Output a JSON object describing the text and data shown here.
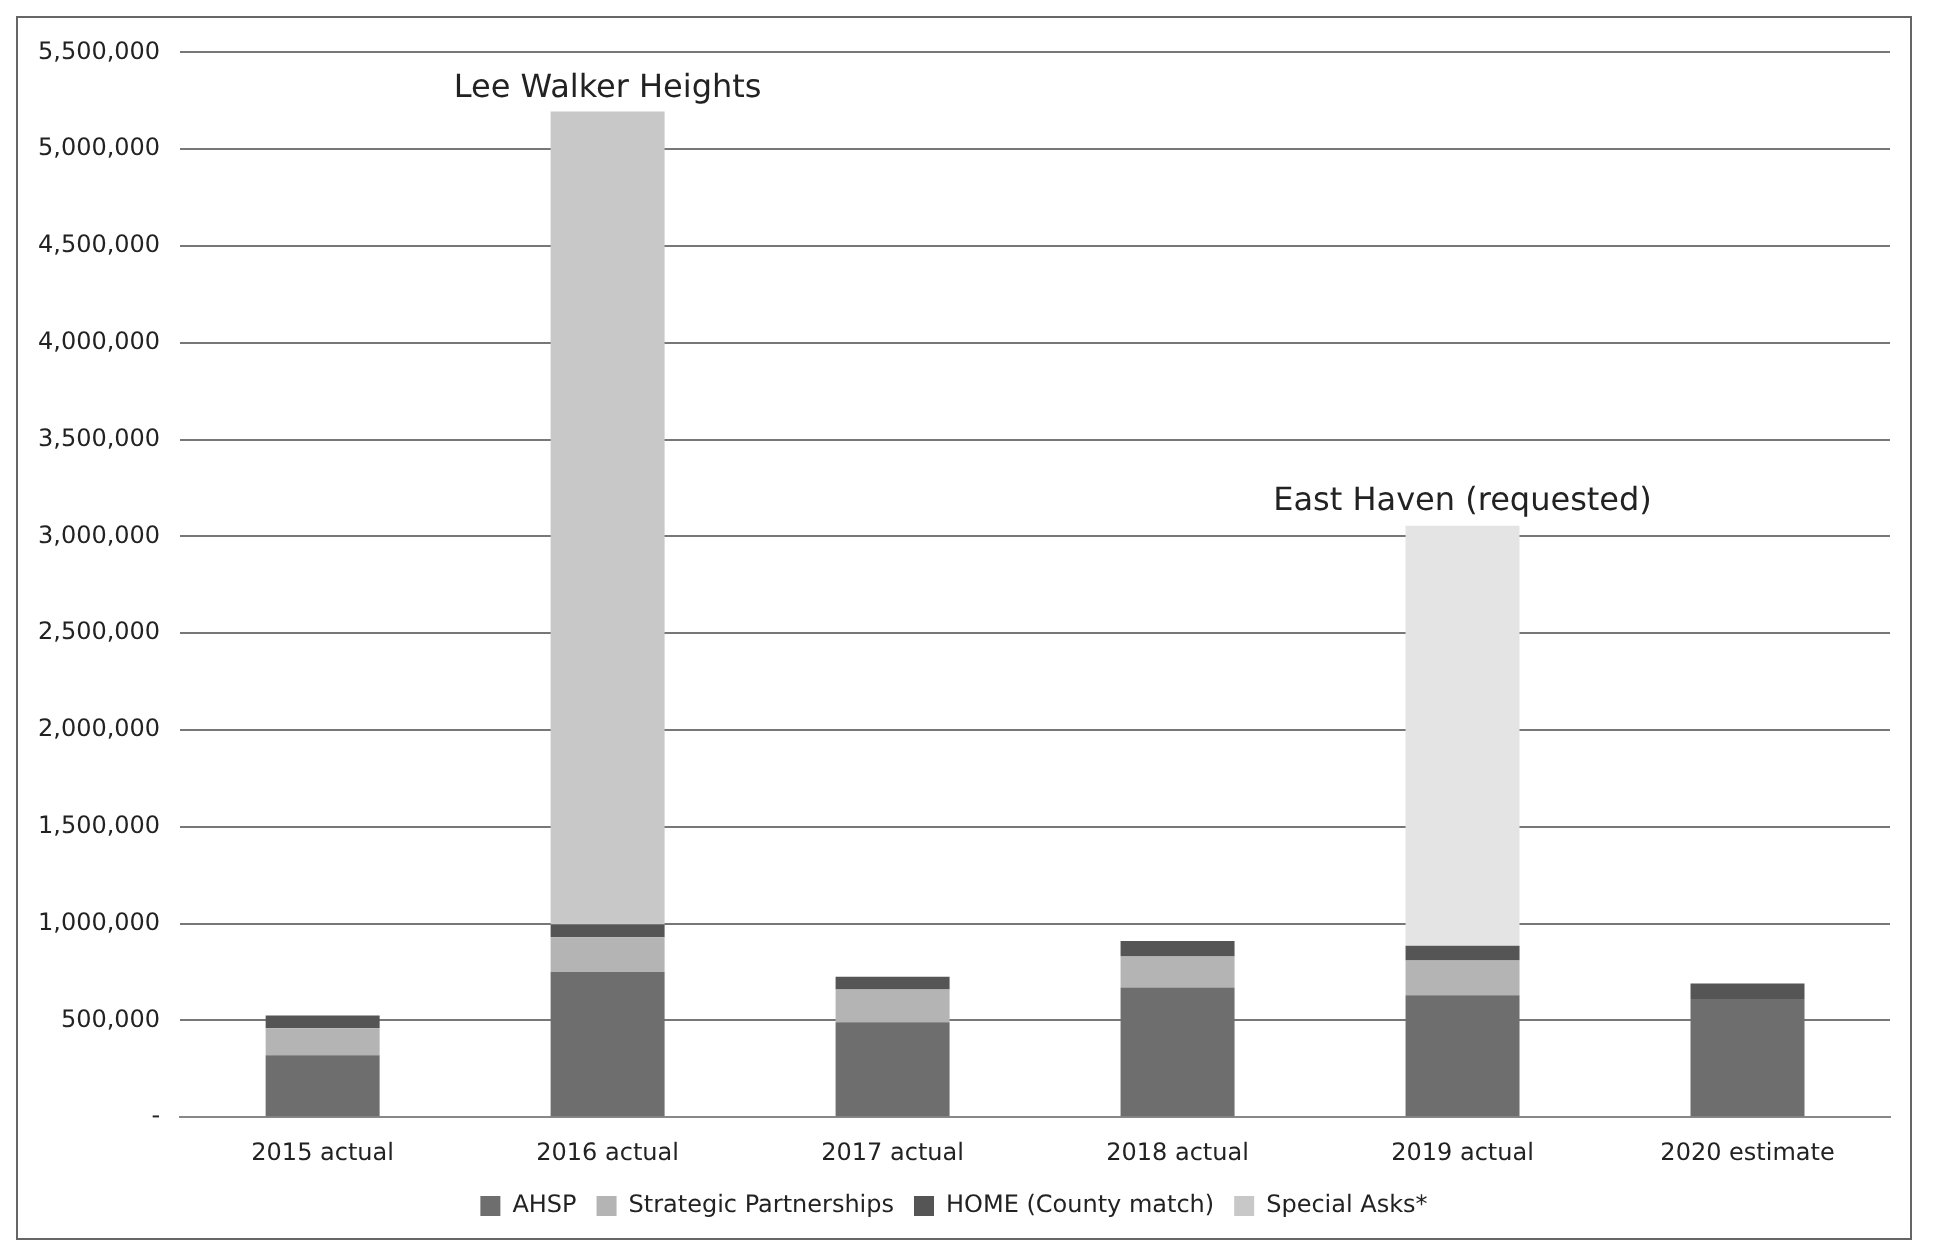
{
  "chart_data": {
    "type": "bar",
    "stacked": true,
    "categories": [
      "2015 actual",
      "2016 actual",
      "2017 actual",
      "2018 actual",
      "2019 actual",
      "2020 estimate"
    ],
    "series": [
      {
        "name": "AHSP",
        "color": "#6e6e6e",
        "values": [
          320000,
          750000,
          490000,
          670000,
          630000,
          610000
        ]
      },
      {
        "name": "Strategic Partnerships",
        "color": "#b4b4b4",
        "values": [
          140000,
          180000,
          170000,
          160000,
          180000,
          0
        ]
      },
      {
        "name": "HOME (County match)",
        "color": "#555555",
        "values": [
          65000,
          65000,
          65000,
          80000,
          75000,
          80000
        ]
      },
      {
        "name": "Special Asks*",
        "color": "#c8c8c8",
        "colors": [
          "#c8c8c8",
          "#c8c8c8",
          "#c8c8c8",
          "#c8c8c8",
          "#e4e4e4",
          "#c8c8c8"
        ],
        "values": [
          null,
          4200000,
          null,
          null,
          2170000,
          null
        ]
      }
    ],
    "ylim": [
      0,
      5500000
    ],
    "yticks": [
      {
        "value": 0,
        "label": "-"
      },
      {
        "value": 500000,
        "label": "500,000"
      },
      {
        "value": 1000000,
        "label": "1,000,000"
      },
      {
        "value": 1500000,
        "label": "1,500,000"
      },
      {
        "value": 2000000,
        "label": "2,000,000"
      },
      {
        "value": 2500000,
        "label": "2,500,000"
      },
      {
        "value": 3000000,
        "label": "3,000,000"
      },
      {
        "value": 3500000,
        "label": "3,500,000"
      },
      {
        "value": 4000000,
        "label": "4,000,000"
      },
      {
        "value": 4500000,
        "label": "4,500,000"
      },
      {
        "value": 5000000,
        "label": "5,000,000"
      },
      {
        "value": 5500000,
        "label": "5,500,000"
      }
    ],
    "grid": "y",
    "legend": "bottom",
    "annotations": [
      {
        "text": "Lee Walker Heights",
        "x": "2016 actual",
        "y": 5190000
      },
      {
        "text": "East Haven (requested)",
        "x": "2019 actual",
        "y": 3055000
      }
    ]
  }
}
